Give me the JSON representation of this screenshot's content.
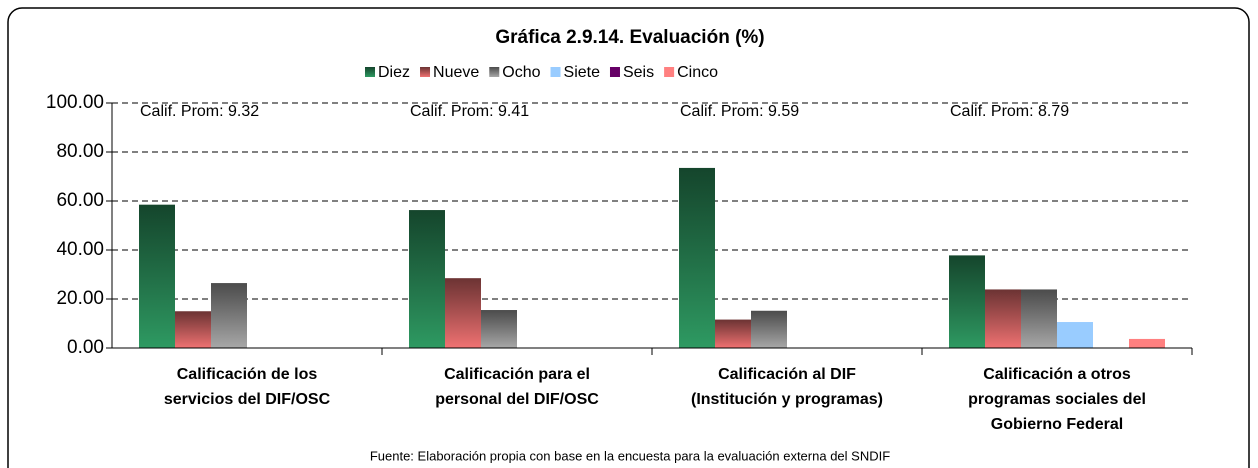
{
  "chart_data": {
    "type": "bar",
    "title": "Gráfica 2.9.14. Evaluación (%)",
    "categories": [
      "Calificación de los\nservicios del DIF/OSC",
      "Calificación para el\npersonal del DIF/OSC",
      "Calificación al DIF\n(Institución y programas)",
      "Calificación a otros\nprogramas sociales del\nGobierno Federal"
    ],
    "series": [
      {
        "name": "Diez",
        "color": "#2e9a62",
        "gradient": true,
        "values": [
          58.5,
          56.3,
          73.5,
          37.8
        ]
      },
      {
        "name": "Nueve",
        "color": "#f07272",
        "gradient": true,
        "values": [
          15,
          28.5,
          11.6,
          23.9
        ]
      },
      {
        "name": "Ocho",
        "color": "#a8a8a8",
        "gradient": true,
        "values": [
          26.5,
          15.5,
          15.2,
          23.9
        ]
      },
      {
        "name": "Siete",
        "color": "#99ccff",
        "values": [
          0,
          0,
          0,
          10.6
        ]
      },
      {
        "name": "Seis",
        "color": "#660066",
        "values": [
          0,
          0,
          0,
          0
        ]
      },
      {
        "name": "Cinco",
        "color": "#ff8080",
        "values": [
          0,
          0,
          0,
          3.7
        ]
      }
    ],
    "annotations": [
      "Calif. Prom: 9.32",
      "Calif. Prom: 9.41",
      "Calif. Prom: 9.59",
      "Calif. Prom: 8.79"
    ],
    "ylim": [
      0,
      100
    ],
    "yticks": [
      {
        "value": 0,
        "label": "0.00"
      },
      {
        "value": 20,
        "label": "20.00"
      },
      {
        "value": 40,
        "label": "40.00"
      },
      {
        "value": 60,
        "label": "60.00"
      },
      {
        "value": 80,
        "label": "80.00"
      },
      {
        "value": 100,
        "label": "100.00"
      }
    ],
    "grid": true,
    "legend": "top",
    "source": "Fuente: Elaboración propia con base en la encuesta para la evaluación externa del SNDIF"
  }
}
